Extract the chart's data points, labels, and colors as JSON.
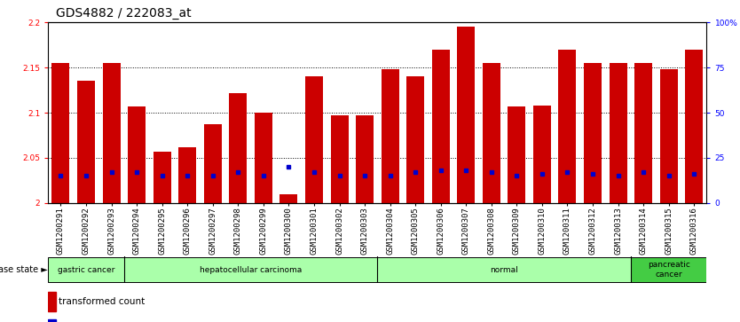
{
  "title": "GDS4882 / 222083_at",
  "samples": [
    "GSM1200291",
    "GSM1200292",
    "GSM1200293",
    "GSM1200294",
    "GSM1200295",
    "GSM1200296",
    "GSM1200297",
    "GSM1200298",
    "GSM1200299",
    "GSM1200300",
    "GSM1200301",
    "GSM1200302",
    "GSM1200303",
    "GSM1200304",
    "GSM1200305",
    "GSM1200306",
    "GSM1200307",
    "GSM1200308",
    "GSM1200309",
    "GSM1200310",
    "GSM1200311",
    "GSM1200312",
    "GSM1200313",
    "GSM1200314",
    "GSM1200315",
    "GSM1200316"
  ],
  "transformed_count": [
    2.155,
    2.135,
    2.155,
    2.107,
    2.057,
    2.062,
    2.087,
    2.122,
    2.1,
    2.01,
    2.14,
    2.097,
    2.097,
    2.148,
    2.14,
    2.17,
    2.195,
    2.155,
    2.107,
    2.108,
    2.17,
    2.155,
    2.155,
    2.155,
    2.148,
    2.17
  ],
  "percentile_rank": [
    15,
    15,
    17,
    17,
    15,
    15,
    15,
    17,
    15,
    20,
    17,
    15,
    15,
    15,
    17,
    18,
    18,
    17,
    15,
    16,
    17,
    16,
    15,
    17,
    15,
    16
  ],
  "disease_groups": [
    {
      "label": "gastric cancer",
      "start": 0,
      "end": 3
    },
    {
      "label": "hepatocellular carcinoma",
      "start": 3,
      "end": 13
    },
    {
      "label": "normal",
      "start": 13,
      "end": 23
    },
    {
      "label": "pancreatic\ncancer",
      "start": 23,
      "end": 26
    }
  ],
  "group_colors": [
    "#aaffaa",
    "#aaffaa",
    "#aaffaa",
    "#44cc44"
  ],
  "ylim_left": [
    2.0,
    2.2
  ],
  "ylim_right": [
    0,
    100
  ],
  "yticks_left": [
    2.0,
    2.05,
    2.1,
    2.15,
    2.2
  ],
  "ytick_labels_left": [
    "2",
    "2.05",
    "2.1",
    "2.15",
    "2.2"
  ],
  "yticks_right": [
    0,
    25,
    50,
    75,
    100
  ],
  "ytick_labels_right": [
    "0",
    "25",
    "50",
    "75",
    "100%"
  ],
  "bar_color": "#cc0000",
  "dot_color": "#0000cc",
  "bar_width": 0.7,
  "background_color": "#ffffff",
  "title_fontsize": 10,
  "tick_fontsize": 6.5,
  "label_fontsize": 8
}
